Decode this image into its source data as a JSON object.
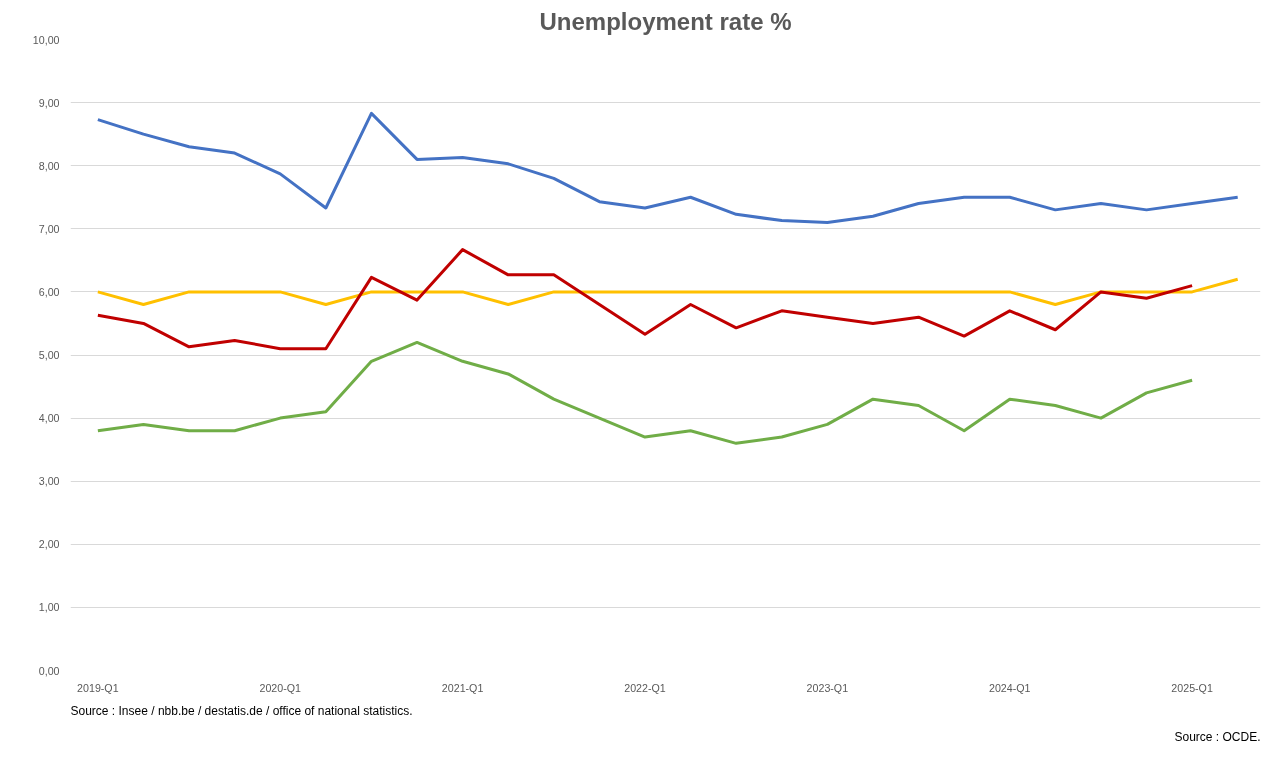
{
  "chart_data": {
    "type": "line",
    "title": "Unemployment rate %",
    "categories": [
      "2019-Q1",
      null,
      null,
      null,
      "2020-Q1",
      null,
      null,
      null,
      "2021-Q1",
      null,
      null,
      null,
      "2022-Q1",
      null,
      null,
      null,
      "2023-Q1",
      null,
      null,
      null,
      "2024-Q1",
      null,
      null,
      null,
      "2025-Q1",
      null
    ],
    "series": [
      {
        "color": "#4472c4",
        "values": [
          8.73,
          8.5,
          8.3,
          8.2,
          7.87,
          7.33,
          8.83,
          8.1,
          8.13,
          8.03,
          7.8,
          7.43,
          7.33,
          7.5,
          7.23,
          7.13,
          7.1,
          7.2,
          7.4,
          7.5,
          7.5,
          7.3,
          7.4,
          7.3,
          7.4,
          7.5
        ]
      },
      {
        "color": "#ffc000",
        "values": [
          6.0,
          5.8,
          6.0,
          6.0,
          6.0,
          5.8,
          6.0,
          6.0,
          6.0,
          5.8,
          6.0,
          6.0,
          6.0,
          6.0,
          6.0,
          6.0,
          6.0,
          6.0,
          6.0,
          6.0,
          6.0,
          5.8,
          6.0,
          6.0,
          6.0,
          6.2
        ]
      },
      {
        "color": "#c00000",
        "values": [
          5.63,
          5.5,
          5.13,
          5.23,
          5.1,
          5.1,
          6.23,
          5.87,
          6.67,
          6.27,
          6.27,
          5.8,
          5.33,
          5.8,
          5.43,
          5.7,
          5.6,
          5.5,
          5.6,
          5.3,
          5.7,
          5.4,
          6.0,
          5.9,
          6.1,
          null
        ]
      },
      {
        "color": "#70ad47",
        "values": [
          3.8,
          3.9,
          3.8,
          3.8,
          4.0,
          4.1,
          4.9,
          5.2,
          4.9,
          4.7,
          4.3,
          4.0,
          3.7,
          3.8,
          3.6,
          3.7,
          3.9,
          4.3,
          4.2,
          3.8,
          4.3,
          4.2,
          4.0,
          4.4,
          4.6,
          null
        ]
      }
    ],
    "ylim": [
      0,
      10
    ],
    "yticks": [
      {
        "value": 0,
        "label": "0,00"
      },
      {
        "value": 1,
        "label": "1,00"
      },
      {
        "value": 2,
        "label": "2,00"
      },
      {
        "value": 3,
        "label": "3,00"
      },
      {
        "value": 4,
        "label": "4,00"
      },
      {
        "value": 5,
        "label": "5,00"
      },
      {
        "value": 6,
        "label": "6,00"
      },
      {
        "value": 7,
        "label": "7,00"
      },
      {
        "value": 8,
        "label": "8,00"
      },
      {
        "value": 9,
        "label": "9,00"
      },
      {
        "value": 10,
        "label": "10,00"
      }
    ],
    "grid": "y",
    "annotations": [
      "Source : Insee / nbb.be / destatis.de / office of national statistics.",
      "Source : OCDE."
    ]
  }
}
